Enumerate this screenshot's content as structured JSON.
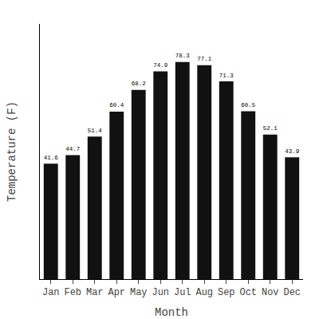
{
  "chart_data": {
    "type": "bar",
    "categories": [
      "Jan",
      "Feb",
      "Mar",
      "Apr",
      "May",
      "Jun",
      "Jul",
      "Aug",
      "Sep",
      "Oct",
      "Nov",
      "Dec"
    ],
    "values": [
      41.6,
      44.7,
      51.4,
      60.4,
      68.2,
      74.9,
      78.3,
      77.1,
      71.3,
      60.5,
      52.1,
      43.9
    ],
    "color": "#111111",
    "xlabel": "Month",
    "ylabel": "Temperature (F)",
    "ylim": [
      0,
      92
    ],
    "grid": false,
    "data_labels": true,
    "tick_labels": "x"
  }
}
